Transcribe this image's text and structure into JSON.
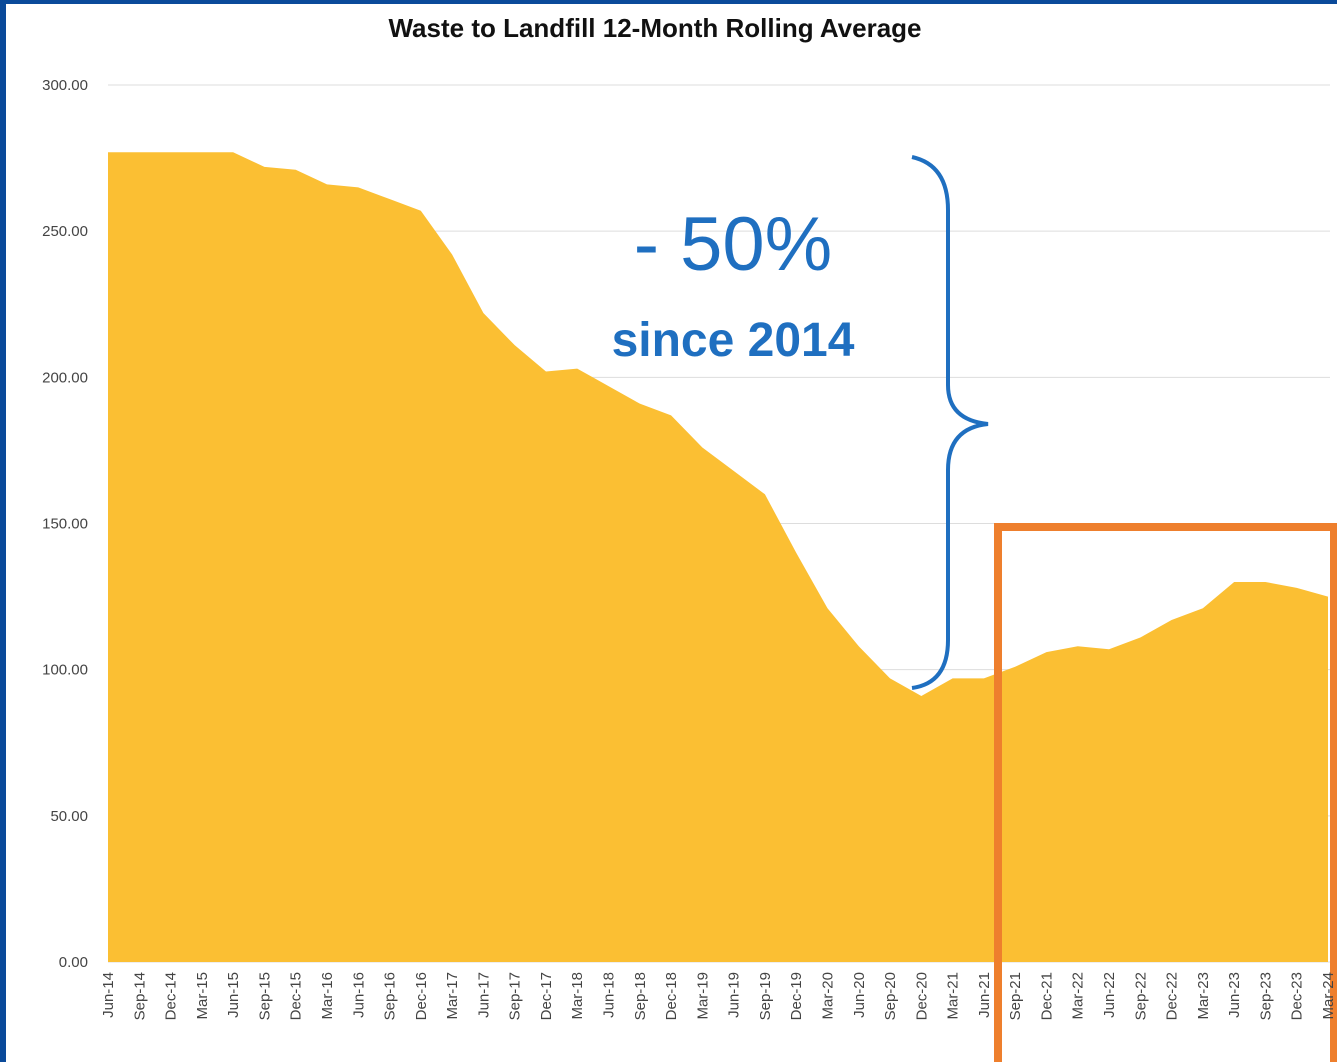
{
  "chart_data": {
    "type": "area",
    "title": "Waste to Landfill 12-Month Rolling Average",
    "categories": [
      "Jun-14",
      "Sep-14",
      "Dec-14",
      "Mar-15",
      "Jun-15",
      "Sep-15",
      "Dec-15",
      "Mar-16",
      "Jun-16",
      "Sep-16",
      "Dec-16",
      "Mar-17",
      "Jun-17",
      "Sep-17",
      "Dec-17",
      "Mar-18",
      "Jun-18",
      "Sep-18",
      "Dec-18",
      "Mar-19",
      "Jun-19",
      "Sep-19",
      "Dec-19",
      "Mar-20",
      "Jun-20",
      "Sep-20",
      "Dec-20",
      "Mar-21",
      "Jun-21",
      "Sep-21",
      "Dec-21",
      "Mar-22",
      "Jun-22",
      "Sep-22",
      "Dec-22",
      "Mar-23",
      "Jun-23",
      "Sep-23",
      "Dec-23",
      "Mar-24"
    ],
    "values": [
      277,
      277,
      277,
      277,
      277,
      272,
      271,
      266,
      265,
      261,
      257,
      242,
      222,
      211,
      202,
      203,
      197,
      191,
      187,
      176,
      168,
      160,
      140,
      121,
      108,
      97,
      91,
      97,
      97,
      101,
      106,
      108,
      107,
      111,
      117,
      121,
      130,
      130,
      128,
      125
    ],
    "color": "#fbbf33",
    "ylim": [
      0,
      300
    ],
    "yticks": [
      {
        "value": 0,
        "label": "0.00"
      },
      {
        "value": 50,
        "label": "50.00"
      },
      {
        "value": 100,
        "label": "100.00"
      },
      {
        "value": 150,
        "label": "150.00"
      },
      {
        "value": 200,
        "label": "200.00"
      },
      {
        "value": 250,
        "label": "250.00"
      },
      {
        "value": 300,
        "label": "300.00"
      }
    ],
    "grid": true,
    "annotations": [
      "- 50%",
      "since 2014"
    ]
  }
}
